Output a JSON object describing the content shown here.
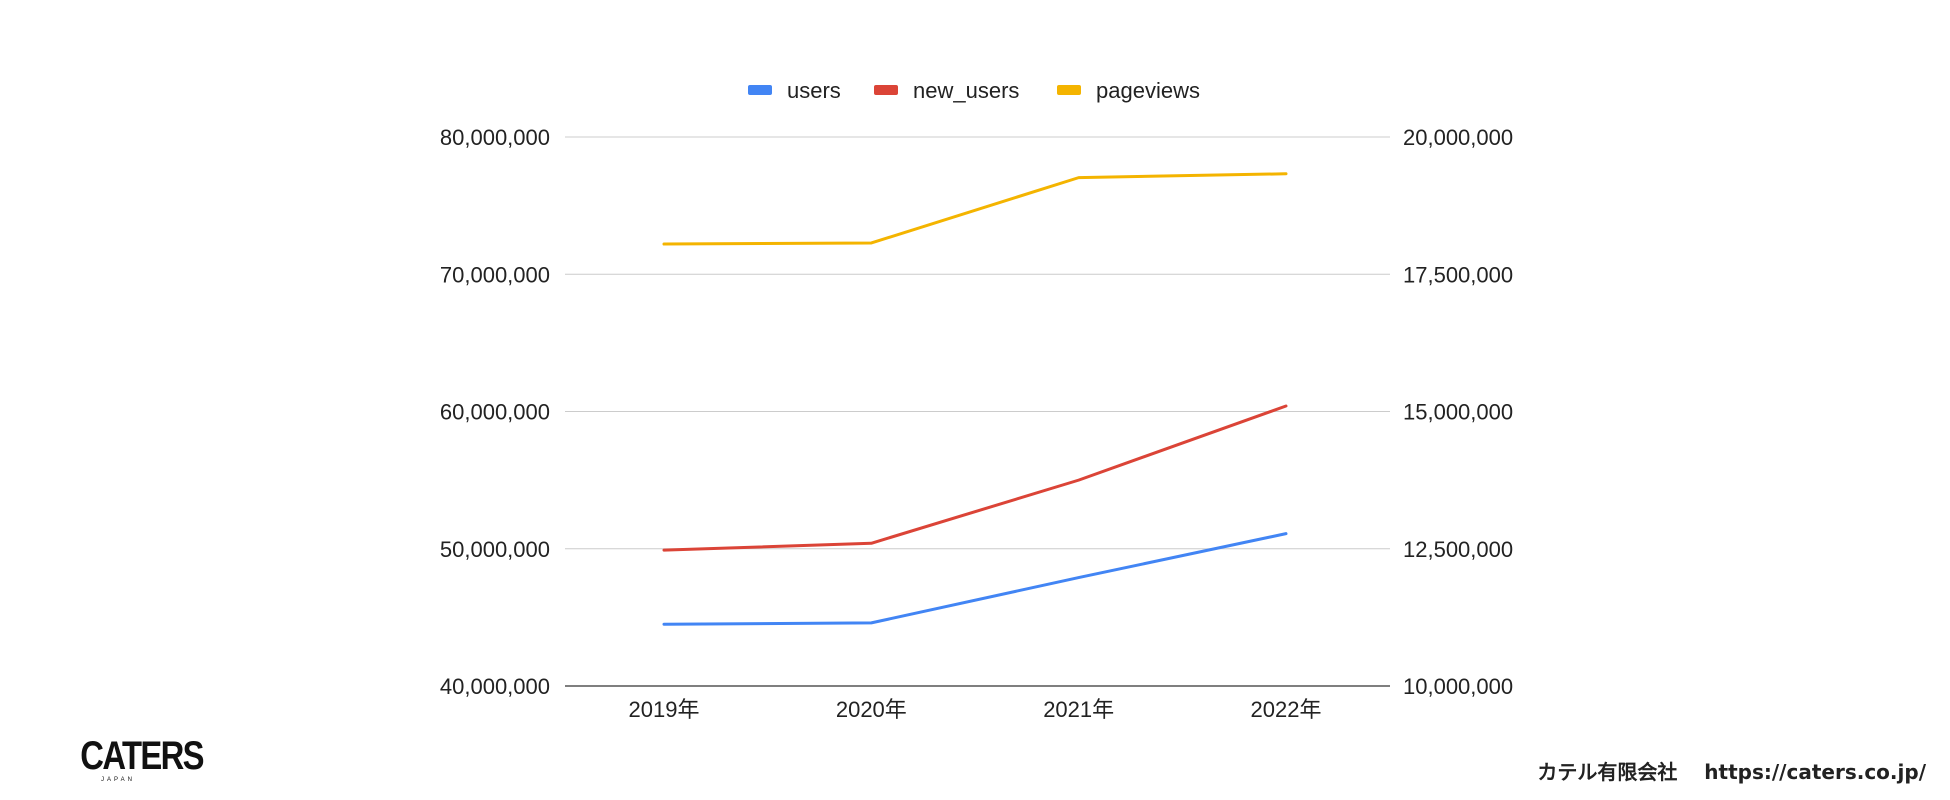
{
  "chart_data": {
    "type": "line",
    "title": "",
    "xlabel": "",
    "ylabel": "",
    "categories": [
      "2019年",
      "2020年",
      "2021年",
      "2022年"
    ],
    "left_axis": {
      "ylim": [
        40000000,
        80000000
      ],
      "ticks": [
        40000000,
        50000000,
        60000000,
        70000000,
        80000000
      ],
      "tick_labels": [
        "40,000,000",
        "50,000,000",
        "60,000,000",
        "70,000,000",
        "80,000,000"
      ]
    },
    "right_axis": {
      "ylim": [
        10000000,
        20000000
      ],
      "ticks": [
        10000000,
        12500000,
        15000000,
        17500000,
        20000000
      ],
      "tick_labels": [
        "10,000,000",
        "12,500,000",
        "15,000,000",
        "17,500,000",
        "20,000,000"
      ]
    },
    "grid": true,
    "legend_position": "top-center",
    "series": [
      {
        "name": "users",
        "axis": "left",
        "color": "#4285f4",
        "values": [
          44500000,
          44600000,
          47900000,
          51100000
        ]
      },
      {
        "name": "new_users",
        "axis": "left",
        "color": "#db4437",
        "values": [
          49900000,
          50400000,
          55000000,
          60400000
        ]
      },
      {
        "name": "pageviews",
        "axis": "right",
        "color": "#f4b400",
        "values": [
          18050000,
          18070000,
          19260000,
          19330000
        ]
      }
    ]
  },
  "branding": {
    "logo_text": "CATERS",
    "logo_subtext": "JAPAN",
    "company": "カテル有限会社",
    "url": "https://caters.co.jp/"
  }
}
